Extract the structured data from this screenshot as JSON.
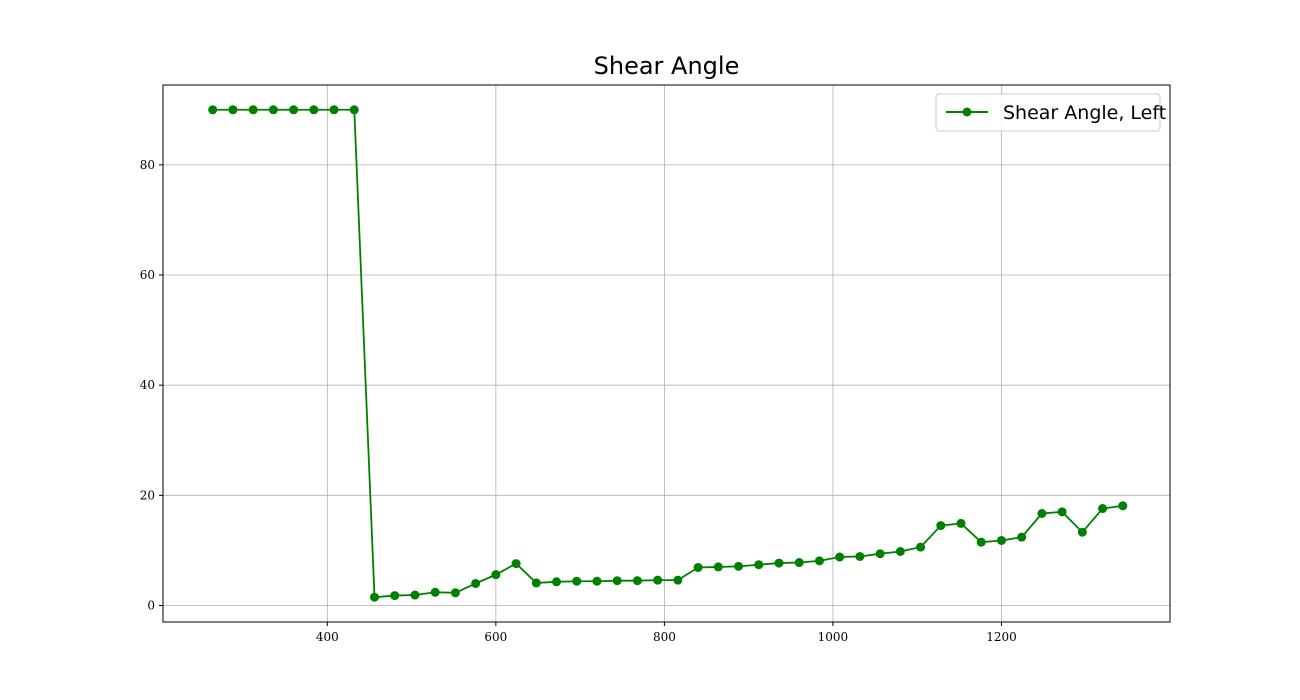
{
  "chart_data": {
    "type": "line",
    "title": "Shear Angle",
    "xlabel": "",
    "ylabel": "",
    "xlim": [
      205,
      1400
    ],
    "ylim": [
      -3,
      94.5
    ],
    "xticks": [
      400,
      600,
      800,
      1000,
      1200
    ],
    "yticks": [
      0,
      20,
      40,
      60,
      80
    ],
    "grid": true,
    "legend_position": "top-right",
    "series": [
      {
        "name": "Shear Angle, Left",
        "color": "#008000",
        "marker": "circle",
        "x": [
          264,
          288,
          312,
          336,
          360,
          384,
          408,
          432,
          456,
          480,
          504,
          528,
          552,
          576,
          600,
          624,
          648,
          672,
          696,
          720,
          744,
          768,
          792,
          816,
          840,
          864,
          888,
          912,
          936,
          960,
          984,
          1008,
          1032,
          1056,
          1080,
          1104,
          1128,
          1152,
          1176,
          1200,
          1224,
          1248,
          1272,
          1296,
          1320,
          1344
        ],
        "y": [
          90,
          90,
          90,
          90,
          90,
          90,
          90,
          90,
          1.5,
          1.8,
          1.9,
          2.4,
          2.3,
          4.0,
          5.6,
          7.6,
          4.1,
          4.3,
          4.4,
          4.4,
          4.5,
          4.5,
          4.6,
          4.6,
          6.9,
          7.0,
          7.1,
          7.4,
          7.7,
          7.8,
          8.1,
          8.8,
          8.9,
          9.4,
          9.8,
          10.6,
          14.5,
          14.9,
          11.5,
          11.8,
          12.4,
          16.7,
          17.0,
          13.3,
          17.6,
          18.1
        ]
      }
    ]
  }
}
